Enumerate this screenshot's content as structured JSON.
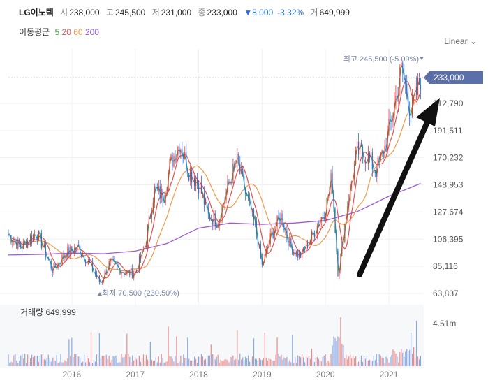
{
  "header": {
    "name": "LG이노텍",
    "open_label": "시",
    "open": "238,000",
    "high_label": "고",
    "high": "245,500",
    "low_label": "저",
    "low": "231,000",
    "close_label": "종",
    "close": "233,000",
    "change": "▼8,000",
    "change_pct": "-3.32%",
    "volume_label": "거",
    "volume": "649,999"
  },
  "ma": {
    "label": "이동평균",
    "items": [
      {
        "text": "5",
        "color": "#3fa33f"
      },
      {
        "text": "20",
        "color": "#e05050"
      },
      {
        "text": "60",
        "color": "#ef9a4a"
      },
      {
        "text": "200",
        "color": "#9b59d9"
      }
    ]
  },
  "scale_label": "Linear",
  "colors": {
    "up": "#e03c3c",
    "down": "#2f6fd8",
    "ma5": "#3fa33f",
    "ma20": "#e05050",
    "ma60": "#ef9a4a",
    "ma200": "#9b59d9",
    "badge": "#5b6fa8"
  },
  "chart_data": {
    "type": "candlestick",
    "x_ticks": [
      "2016",
      "2017",
      "2018",
      "2019",
      "2020",
      "2021"
    ],
    "y_ticks": [
      "63,837",
      "85,116",
      "106,395",
      "127,674",
      "148,953",
      "170,232",
      "191,511",
      "212,790",
      "233,000"
    ],
    "y_tick_values": [
      63837,
      85116,
      106395,
      127674,
      148953,
      170232,
      191511,
      212790
    ],
    "ylim": [
      63837,
      250000
    ],
    "current_price": 233000,
    "current_label": "233,000",
    "max_label": "최고 245,500 (-5.09%)",
    "min_label": "최저 70,500 (230.50%)",
    "max_value": 245500,
    "min_value": 70500,
    "price_path": [
      [
        2015.0,
        110000
      ],
      [
        2015.2,
        100000
      ],
      [
        2015.45,
        112000
      ],
      [
        2015.7,
        82000
      ],
      [
        2015.9,
        95000
      ],
      [
        2016.1,
        100000
      ],
      [
        2016.3,
        85000
      ],
      [
        2016.45,
        72000
      ],
      [
        2016.6,
        88000
      ],
      [
        2016.85,
        80000
      ],
      [
        2017.0,
        80000
      ],
      [
        2017.15,
        100000
      ],
      [
        2017.3,
        145000
      ],
      [
        2017.45,
        140000
      ],
      [
        2017.55,
        165000
      ],
      [
        2017.7,
        182000
      ],
      [
        2017.85,
        160000
      ],
      [
        2018.0,
        150000
      ],
      [
        2018.15,
        125000
      ],
      [
        2018.3,
        120000
      ],
      [
        2018.45,
        145000
      ],
      [
        2018.6,
        168000
      ],
      [
        2018.75,
        140000
      ],
      [
        2018.9,
        115000
      ],
      [
        2019.0,
        85000
      ],
      [
        2019.15,
        110000
      ],
      [
        2019.3,
        125000
      ],
      [
        2019.45,
        100000
      ],
      [
        2019.6,
        93000
      ],
      [
        2019.8,
        110000
      ],
      [
        2020.0,
        130000
      ],
      [
        2020.1,
        155000
      ],
      [
        2020.2,
        78000
      ],
      [
        2020.35,
        135000
      ],
      [
        2020.5,
        175000
      ],
      [
        2020.65,
        172000
      ],
      [
        2020.8,
        160000
      ],
      [
        2020.95,
        180000
      ],
      [
        2021.1,
        215000
      ],
      [
        2021.2,
        240000
      ],
      [
        2021.35,
        205000
      ],
      [
        2021.5,
        233000
      ]
    ],
    "ma200_path": [
      [
        2015.0,
        94000
      ],
      [
        2015.5,
        94500
      ],
      [
        2016.0,
        95500
      ],
      [
        2016.5,
        95000
      ],
      [
        2017.0,
        97000
      ],
      [
        2017.5,
        103000
      ],
      [
        2018.0,
        115000
      ],
      [
        2018.5,
        119000
      ],
      [
        2019.0,
        118000
      ],
      [
        2019.5,
        119000
      ],
      [
        2020.0,
        121000
      ],
      [
        2020.5,
        128000
      ],
      [
        2021.0,
        140000
      ],
      [
        2021.5,
        150000
      ]
    ],
    "volume_tick": "4.51m",
    "volume_title": "거래량",
    "volume_value": "649,999"
  }
}
